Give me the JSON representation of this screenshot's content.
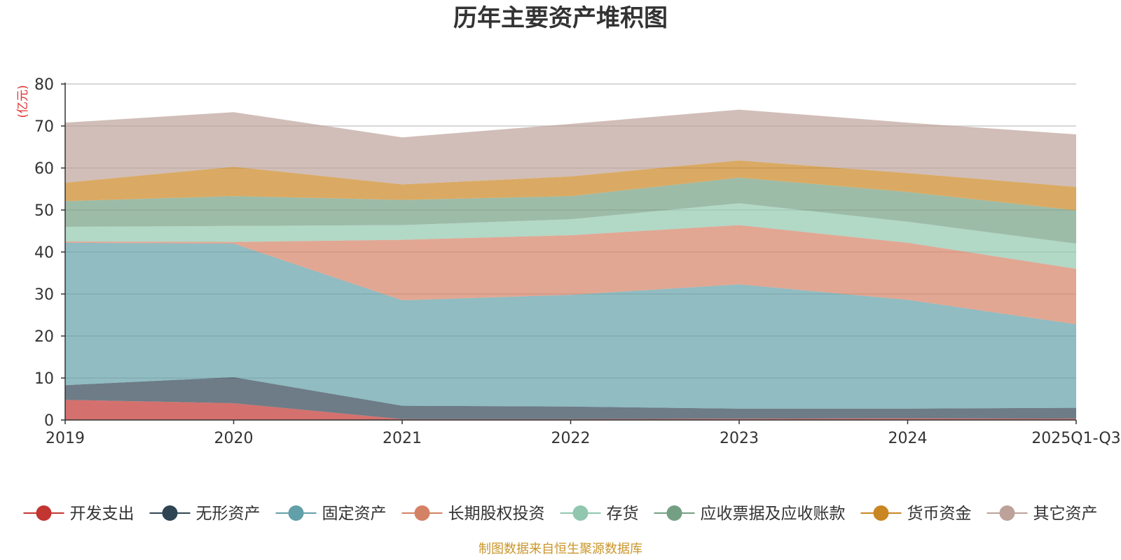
{
  "chart_data": {
    "type": "area",
    "stacked": true,
    "title": "历年主要资产堆积图",
    "ylabel": "(亿元)",
    "ylim": [
      0,
      80
    ],
    "yticks": [
      0,
      10,
      20,
      30,
      40,
      50,
      60,
      70,
      80
    ],
    "categories": [
      "2019",
      "2020",
      "2021",
      "2022",
      "2023",
      "2024",
      "2025Q1-Q3"
    ],
    "series": [
      {
        "name": "开发支出",
        "color": "#c23531",
        "values": [
          4.8,
          4.0,
          0.2,
          0.2,
          0.3,
          0.4,
          0.3
        ]
      },
      {
        "name": "无形资产",
        "color": "#2f4554",
        "values": [
          3.5,
          6.2,
          3.2,
          3.0,
          2.4,
          2.3,
          2.6
        ]
      },
      {
        "name": "固定资产",
        "color": "#61a0a8",
        "values": [
          33.9,
          31.8,
          25.1,
          26.6,
          29.6,
          25.9,
          19.9
        ]
      },
      {
        "name": "长期股权投资",
        "color": "#d48265",
        "values": [
          0.3,
          0.4,
          14.4,
          14.2,
          14.1,
          13.6,
          13.2
        ]
      },
      {
        "name": "存货",
        "color": "#91c7ae",
        "values": [
          3.5,
          3.8,
          3.5,
          3.8,
          5.2,
          5.0,
          6.0
        ]
      },
      {
        "name": "应收票据及应收账款",
        "color": "#749f83",
        "values": [
          6.1,
          7.1,
          6.0,
          5.5,
          6.1,
          7.1,
          7.9
        ]
      },
      {
        "name": "货币资金",
        "color": "#ca8622",
        "values": [
          4.4,
          7.0,
          3.7,
          4.7,
          4.1,
          4.5,
          5.6
        ]
      },
      {
        "name": "其它资产",
        "color": "#bda29a",
        "values": [
          14.3,
          13.0,
          11.2,
          12.5,
          12.1,
          12.0,
          12.5
        ]
      }
    ]
  },
  "footer": "制图数据来自恒生聚源数据库"
}
